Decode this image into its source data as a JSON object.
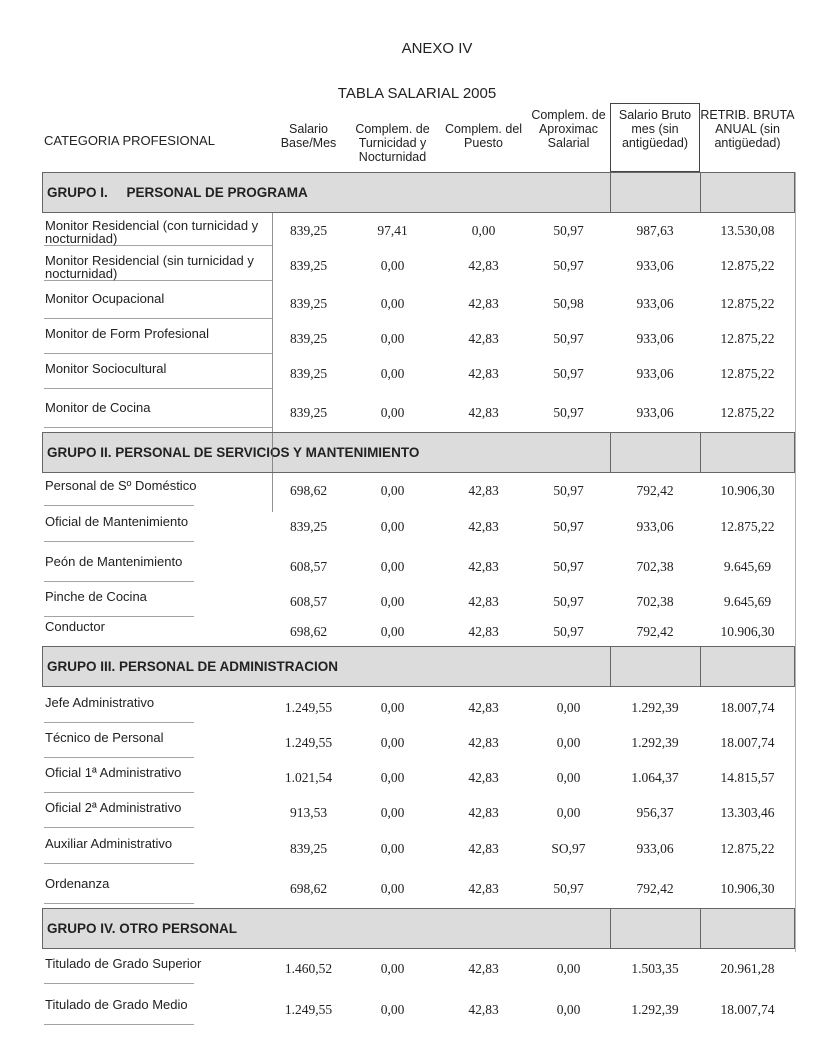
{
  "header": {
    "annex": "ANEXO IV",
    "title": "TABLA SALARIAL 2005"
  },
  "table": {
    "headers": [
      "CATEGORIA PROFESIONAL",
      "Salario Base/Mes",
      "Complem. de Turnicidad y Nocturnidad",
      "Complem. del Puesto",
      "Complem. de Aproximac Salarial",
      "Salario Bruto mes (sin antigüedad)",
      "RETRIB. BRUTA ANUAL (sin antigüedad)"
    ],
    "sections": [
      {
        "title": "GRUPO I.     PERSONAL DE PROGRAMA",
        "rows": [
          [
            "Monitor Residencial (con turnicidad y nocturnidad)",
            "839,25",
            "97,41",
            "0,00",
            "50,97",
            "987,63",
            "13.530,08"
          ],
          [
            "Monitor Residencial (sin turnicidad y nocturnidad)",
            "839,25",
            "0,00",
            "42,83",
            "50,97",
            "933,06",
            "12.875,22"
          ],
          [
            "Monitor Ocupacional",
            "839,25",
            "0,00",
            "42,83",
            "50,98",
            "933,06",
            "12.875,22"
          ],
          [
            "Monitor de Form Profesional",
            "839,25",
            "0,00",
            "42,83",
            "50,97",
            "933,06",
            "12.875,22"
          ],
          [
            "Monitor Sociocultural",
            "839,25",
            "0,00",
            "42,83",
            "50,97",
            "933,06",
            "12.875,22"
          ],
          [
            "Monitor de Cocina",
            "839,25",
            "0,00",
            "42,83",
            "50,97",
            "933,06",
            "12.875,22"
          ]
        ]
      },
      {
        "title": "GRUPO II. PERSONAL DE SERVICIOS Y MANTENIMIENTO",
        "rows": [
          [
            "Personal de Sº Doméstico",
            "698,62",
            "0,00",
            "42,83",
            "50,97",
            "792,42",
            "10.906,30"
          ],
          [
            "Oficial de Mantenimiento",
            "839,25",
            "0,00",
            "42,83",
            "50,97",
            "933,06",
            "12.875,22"
          ],
          [
            "Peón de Mantenimiento",
            "608,57",
            "0,00",
            "42,83",
            "50,97",
            "702,38",
            "9.645,69"
          ],
          [
            "Pinche de Cocina",
            "608,57",
            "0,00",
            "42,83",
            "50,97",
            "702,38",
            "9.645,69"
          ],
          [
            "Conductor",
            "698,62",
            "0,00",
            "42,83",
            "50,97",
            "792,42",
            "10.906,30"
          ]
        ]
      },
      {
        "title": "GRUPO III. PERSONAL DE ADMINISTRACION",
        "rows": [
          [
            "Jefe Administrativo",
            "1.249,55",
            "0,00",
            "42,83",
            "0,00",
            "1.292,39",
            "18.007,74"
          ],
          [
            "Técnico de Personal",
            "1.249,55",
            "0,00",
            "42,83",
            "0,00",
            "1.292,39",
            "18.007,74"
          ],
          [
            "Oficial 1ª Administrativo",
            "1.021,54",
            "0,00",
            "42,83",
            "0,00",
            "1.064,37",
            "14.815,57"
          ],
          [
            "Oficial 2ª Administrativo",
            "913,53",
            "0,00",
            "42,83",
            "0,00",
            "956,37",
            "13.303,46"
          ],
          [
            "Auxiliar Administrativo",
            "839,25",
            "0,00",
            "42,83",
            "SO,97",
            "933,06",
            "12.875,22"
          ],
          [
            "Ordenanza",
            "698,62",
            "0,00",
            "42,83",
            "50,97",
            "792,42",
            "10.906,30"
          ]
        ]
      },
      {
        "title": "GRUPO IV. OTRO PERSONAL",
        "rows": [
          [
            "Titulado de Grado Superior",
            "1.460,52",
            "0,00",
            "42,83",
            "0,00",
            "1.503,35",
            "20.961,28"
          ],
          [
            "Titulado de Grado Medio",
            "1.249,55",
            "0,00",
            "42,83",
            "0,00",
            "1.292,39",
            "18.007,74"
          ]
        ]
      }
    ]
  }
}
